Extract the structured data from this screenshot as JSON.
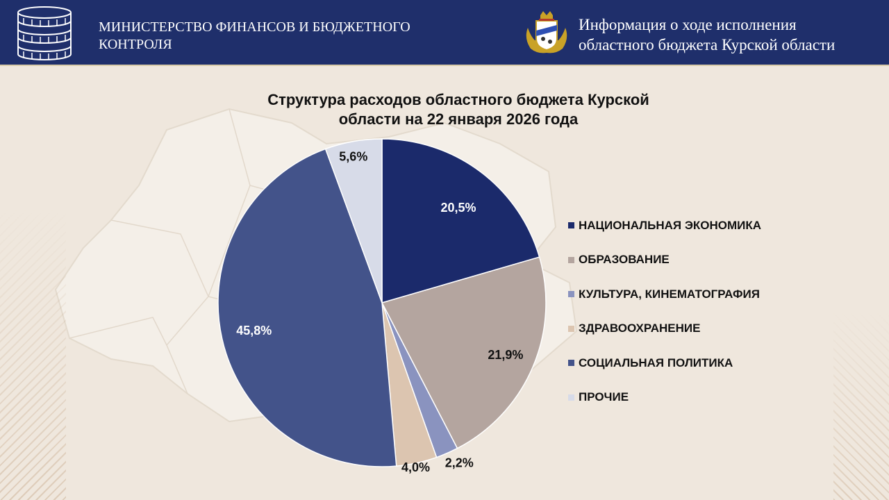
{
  "header": {
    "ministry_title": "МИНИСТЕРСТВО  ФИНАНСОВ И БЮДЖЕТНОГО\nКОНТРОЛЯ",
    "info_title": "Информация о ходе исполнения\nобластного бюджета Курской области",
    "background_color": "#1f2f6b",
    "coin_icon": "coin-stack-icon",
    "emblem_icon": "kursk-coat-of-arms-icon"
  },
  "chart_data": {
    "type": "pie",
    "title": "Структура расходов областного бюджета Курской\nобласти на 22 января 2026 года",
    "start_angle_deg": 0,
    "direction": "clockwise",
    "legend_position": "right",
    "slices": [
      {
        "label": "НАЦИОНАЛЬНАЯ  ЭКОНОМИКА",
        "value": 20.5,
        "display": "20,5%",
        "color": "#1b2a6b",
        "label_color": "#ffffff"
      },
      {
        "label": "ОБРАЗОВАНИЕ",
        "value": 21.9,
        "display": "21,9%",
        "color": "#b4a59f",
        "label_color": "#111111"
      },
      {
        "label": "КУЛЬТУРА, КИНЕМАТОГРАФИЯ",
        "value": 2.2,
        "display": "2,2%",
        "color": "#8a93bf",
        "label_color": "#111111"
      },
      {
        "label": "ЗДРАВООХРАНЕНИЕ",
        "value": 4.0,
        "display": "4,0%",
        "color": "#dcc5b0",
        "label_color": "#111111"
      },
      {
        "label": "СОЦИАЛЬНАЯ ПОЛИТИКА",
        "value": 45.8,
        "display": "45,8%",
        "color": "#43538a",
        "label_color": "#ffffff"
      },
      {
        "label": "ПРОЧИЕ",
        "value": 5.6,
        "display": "5,6%",
        "color": "#d7dbe8",
        "label_color": "#111111"
      }
    ]
  }
}
